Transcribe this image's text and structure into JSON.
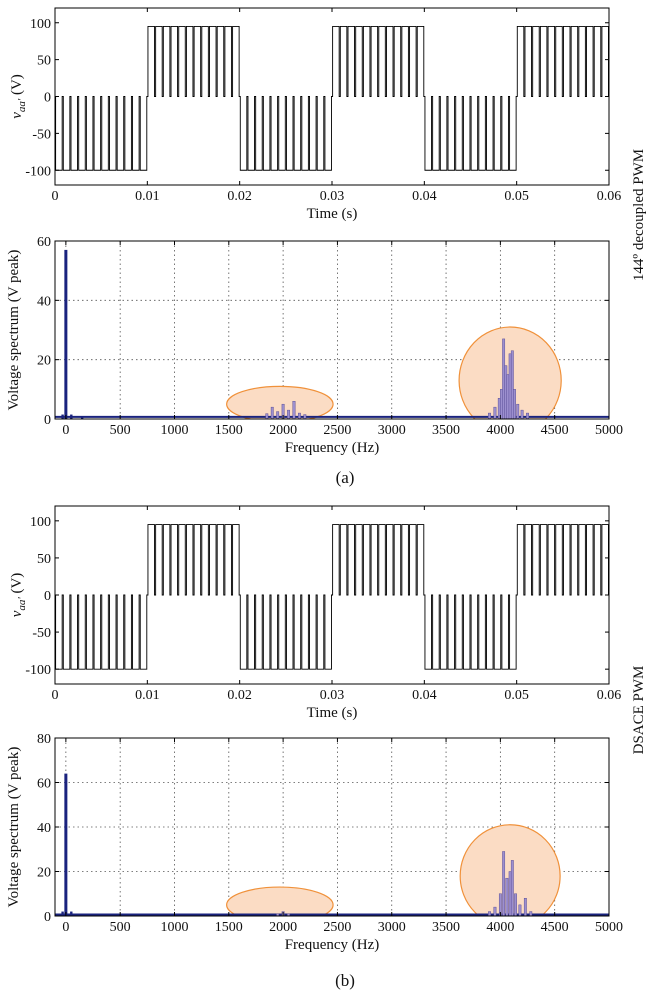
{
  "figure": {
    "side_label_a": "144º decoupled PWM",
    "side_label_b": "DSACE PWM",
    "caption_a": "(a)",
    "caption_b": "(b)"
  },
  "colors": {
    "waveform": "#000000",
    "spectrum_bar": "#1a237e",
    "harmonic_fill": "#9c8fcf",
    "highlight_fill": "#fbdcc4",
    "highlight_stroke": "#f0913a"
  },
  "chart_data": [
    {
      "id": "a_time",
      "type": "line",
      "ylabel": "v_aa' (V)",
      "xlabel": "Time (s)",
      "xlim": [
        0,
        0.06
      ],
      "ylim": [
        -120,
        120
      ],
      "xticks": [
        "0",
        "0.01",
        "0.02",
        "0.03",
        "0.04",
        "0.05",
        "0.06"
      ],
      "yticks": [
        "-100",
        "-50",
        "0",
        "50",
        "100"
      ],
      "grid": false,
      "waveform": {
        "fundamental_period_s": 0.02,
        "positive_level": 95,
        "negative_level": -100,
        "pulses_per_half_cycle": 12
      }
    },
    {
      "id": "a_spectrum",
      "type": "bar",
      "ylabel": "Voltage spectrum (V peak)",
      "xlabel": "Frequency (Hz)",
      "xlim": [
        -100,
        5000
      ],
      "ylim": [
        0,
        60
      ],
      "xticks": [
        "0",
        "500",
        "1000",
        "1500",
        "2000",
        "2500",
        "3000",
        "3500",
        "4000",
        "4500",
        "5000"
      ],
      "yticks": [
        "0",
        "20",
        "40",
        "60"
      ],
      "grid": true,
      "bars": [
        {
          "x": 0,
          "y": 57
        },
        {
          "x": -30,
          "y": 1.5
        },
        {
          "x": 50,
          "y": 1.5
        },
        {
          "x": 150,
          "y": 0.8
        },
        {
          "x": 1850,
          "y": 1.8
        },
        {
          "x": 1900,
          "y": 4
        },
        {
          "x": 1950,
          "y": 2.5
        },
        {
          "x": 2000,
          "y": 5
        },
        {
          "x": 2050,
          "y": 3
        },
        {
          "x": 2100,
          "y": 6
        },
        {
          "x": 2150,
          "y": 2
        },
        {
          "x": 2200,
          "y": 1.5
        },
        {
          "x": 3900,
          "y": 2
        },
        {
          "x": 3950,
          "y": 4
        },
        {
          "x": 3990,
          "y": 7
        },
        {
          "x": 4010,
          "y": 10
        },
        {
          "x": 4030,
          "y": 27
        },
        {
          "x": 4050,
          "y": 18
        },
        {
          "x": 4070,
          "y": 15
        },
        {
          "x": 4090,
          "y": 22
        },
        {
          "x": 4110,
          "y": 23
        },
        {
          "x": 4130,
          "y": 10
        },
        {
          "x": 4160,
          "y": 5
        },
        {
          "x": 4200,
          "y": 3
        },
        {
          "x": 4250,
          "y": 2
        }
      ],
      "highlights": [
        {
          "cx": 1970,
          "cy": 5,
          "rx": 490,
          "ry": 6
        },
        {
          "cx": 4090,
          "cy": 13,
          "rx": 470,
          "ry": 18
        }
      ]
    },
    {
      "id": "b_time",
      "type": "line",
      "ylabel": "v_aa' (V)",
      "xlabel": "Time (s)",
      "xlim": [
        0,
        0.06
      ],
      "ylim": [
        -120,
        120
      ],
      "xticks": [
        "0",
        "0.01",
        "0.02",
        "0.03",
        "0.04",
        "0.05",
        "0.06"
      ],
      "yticks": [
        "-100",
        "-50",
        "0",
        "50",
        "100"
      ],
      "grid": false,
      "waveform": {
        "fundamental_period_s": 0.02,
        "positive_level": 95,
        "negative_level": -100,
        "pulses_per_half_cycle": 12
      }
    },
    {
      "id": "b_spectrum",
      "type": "bar",
      "ylabel": "Voltage spectrum (V peak)",
      "xlabel": "Frequency (Hz)",
      "xlim": [
        -100,
        5000
      ],
      "ylim": [
        0,
        80
      ],
      "xticks": [
        "0",
        "500",
        "1000",
        "1500",
        "2000",
        "2500",
        "3000",
        "3500",
        "4000",
        "4500",
        "5000"
      ],
      "yticks": [
        "0",
        "20",
        "40",
        "60",
        "80"
      ],
      "grid": true,
      "bars": [
        {
          "x": 0,
          "y": 64
        },
        {
          "x": -30,
          "y": 2
        },
        {
          "x": 50,
          "y": 2
        },
        {
          "x": 150,
          "y": 0.8
        },
        {
          "x": 1950,
          "y": 1
        },
        {
          "x": 2000,
          "y": 2
        },
        {
          "x": 2050,
          "y": 1
        },
        {
          "x": 3900,
          "y": 2
        },
        {
          "x": 3950,
          "y": 4
        },
        {
          "x": 4000,
          "y": 10
        },
        {
          "x": 4030,
          "y": 29
        },
        {
          "x": 4060,
          "y": 17
        },
        {
          "x": 4090,
          "y": 20
        },
        {
          "x": 4110,
          "y": 25
        },
        {
          "x": 4140,
          "y": 10
        },
        {
          "x": 4180,
          "y": 5
        },
        {
          "x": 4230,
          "y": 8
        },
        {
          "x": 4280,
          "y": 2
        }
      ],
      "highlights": [
        {
          "cx": 1970,
          "cy": 5,
          "rx": 490,
          "ry": 8
        },
        {
          "cx": 4090,
          "cy": 18,
          "rx": 460,
          "ry": 23
        }
      ]
    }
  ]
}
